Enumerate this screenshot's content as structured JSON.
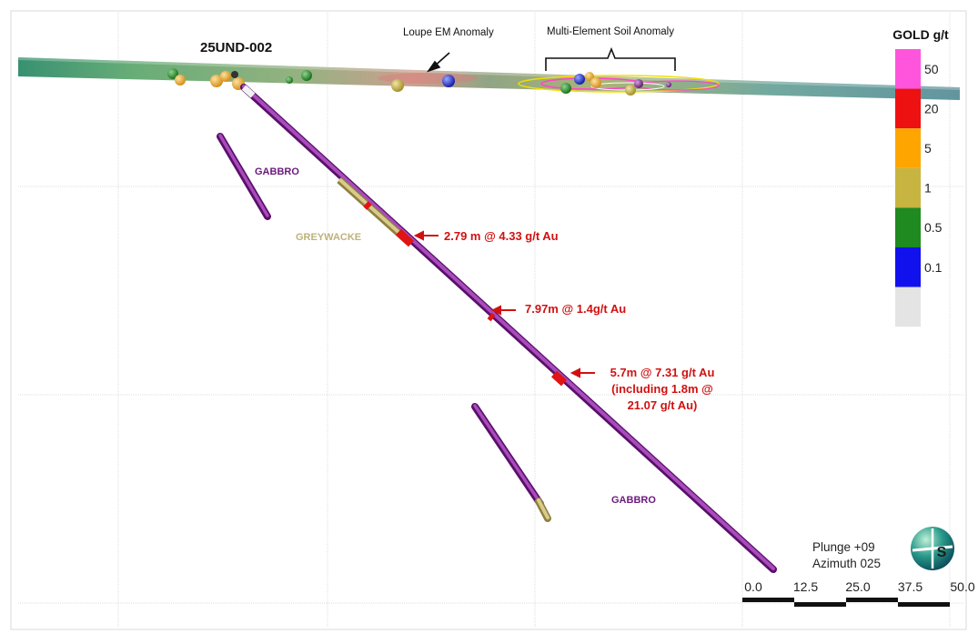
{
  "hole_id": "25UND-002",
  "anomalies": {
    "loupe_em": "Loupe EM Anomaly",
    "multi_element_soil": "Multi-Element Soil Anomaly"
  },
  "lithology": {
    "gabbro_upper": "GABBRO",
    "greywacke": "GREYWACKE",
    "gabbro_lower": "GABBRO"
  },
  "intercepts": {
    "intercept_1": "2.79 m @ 4.33 g/t Au",
    "intercept_2": "7.97m  @ 1.4g/t Au",
    "intercept_3_line1": "5.7m @ 7.31 g/t Au",
    "intercept_3_line2": "(including 1.8m @",
    "intercept_3_line3": "21.07 g/t Au)"
  },
  "legend": {
    "title": "GOLD g/t",
    "ranges": [
      {
        "label": "50",
        "color": "#ff55dd"
      },
      {
        "label": "20",
        "color": "#ee1111"
      },
      {
        "label": "5",
        "color": "#ffa500"
      },
      {
        "label": "1",
        "color": "#c8b440"
      },
      {
        "label": "0.5",
        "color": "#1f8a1f"
      },
      {
        "label": "0.1",
        "color": "#1111ee"
      },
      {
        "label": "",
        "color": "#e4e4e4"
      }
    ]
  },
  "orientation": {
    "plunge": "Plunge +09",
    "azimuth": "Azimuth 025",
    "compass_letter": "S"
  },
  "scale_bar": {
    "ticks": [
      "0.0",
      "12.5",
      "25.0",
      "37.5",
      "50.0"
    ]
  },
  "colors": {
    "drillhole": "#7a1a8c",
    "greywacke": "#c9bd7a",
    "intercept": "#e01414",
    "annotation_red": "#d11111"
  }
}
